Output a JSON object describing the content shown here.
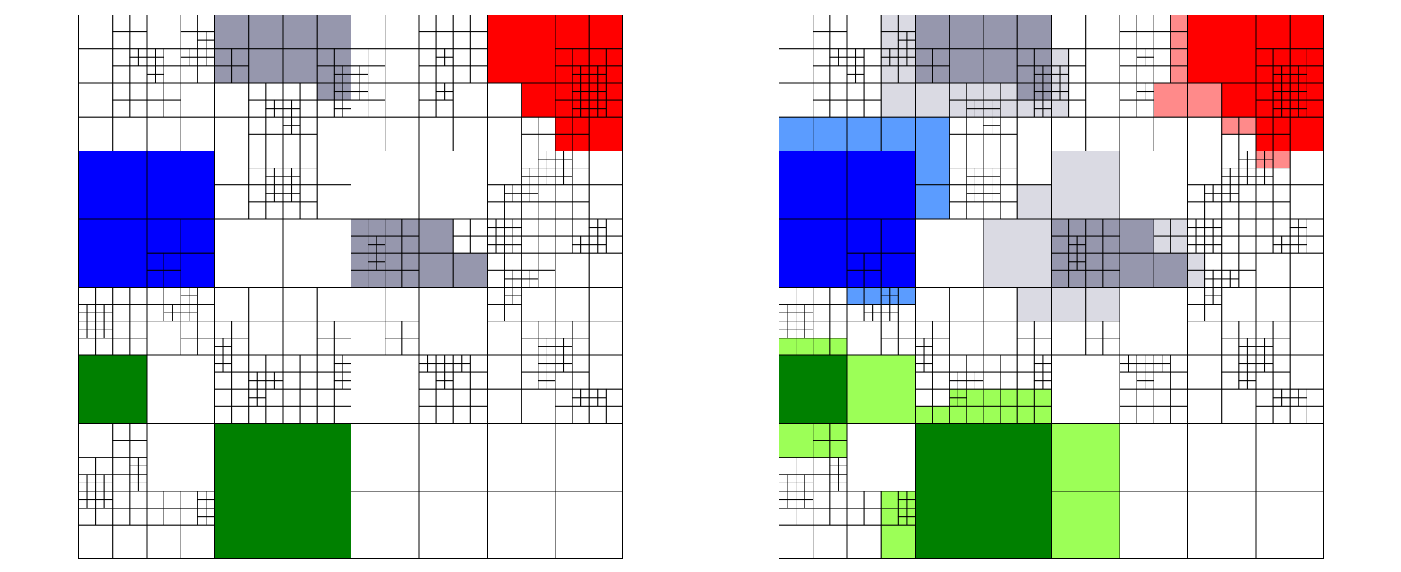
{
  "figure": {
    "panels": [
      {
        "name": "mesh-original",
        "regions": [
          "gray-1",
          "red",
          "blue",
          "gray-2",
          "green"
        ],
        "halo": false
      },
      {
        "name": "mesh-with-halo",
        "regions": [
          "gray-1",
          "red",
          "blue",
          "gray-2",
          "green"
        ],
        "halo": true
      }
    ]
  },
  "colors": {
    "background": "#ffffff",
    "grid_line": "#000000",
    "gray": "#9697ad",
    "gray_light": "#dadae3",
    "red": "#ff0000",
    "red_light": "#ff8a8a",
    "blue": "#0000ff",
    "blue_light": "#5b9cff",
    "green": "#008000",
    "green_light": "#9cff57"
  }
}
